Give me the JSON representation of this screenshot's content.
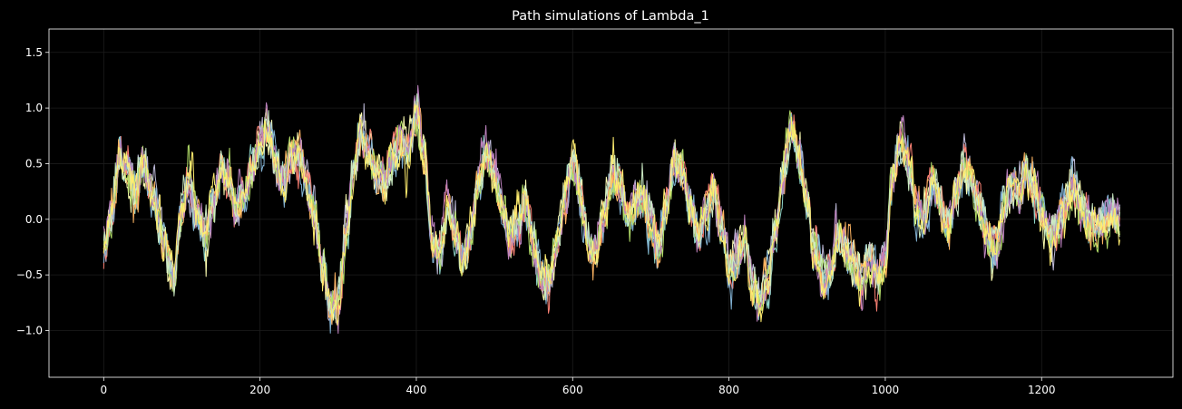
{
  "chart_data": {
    "type": "line",
    "title": "Path simulations of Lambda_1",
    "xlabel": "",
    "ylabel": "",
    "xlim": [
      -70,
      1368
    ],
    "ylim": [
      -1.42,
      1.71
    ],
    "xticks": [
      0,
      200,
      400,
      600,
      800,
      1000,
      1200
    ],
    "xtick_labels": [
      "0",
      "200",
      "400",
      "600",
      "800",
      "1000",
      "1200"
    ],
    "yticks": [
      -1.0,
      -0.5,
      0.0,
      0.5,
      1.0,
      1.5
    ],
    "ytick_labels": [
      "−1.0",
      "−0.5",
      "0.0",
      "0.5",
      "1.0",
      "1.5"
    ],
    "grid": true,
    "background": "#000000",
    "series_colors": [
      "#8dd3c7",
      "#feffb3",
      "#bfbbd9",
      "#fa8174",
      "#81b1d2",
      "#fdb462",
      "#b3de69",
      "#bc82bd",
      "#ccebc4",
      "#ffed6f"
    ],
    "x_range": [
      0,
      1300
    ],
    "mean_path": [
      {
        "x": 0,
        "y": -0.3
      },
      {
        "x": 10,
        "y": 0.05
      },
      {
        "x": 20,
        "y": 0.6
      },
      {
        "x": 30,
        "y": 0.45
      },
      {
        "x": 40,
        "y": 0.2
      },
      {
        "x": 50,
        "y": 0.55
      },
      {
        "x": 60,
        "y": 0.3
      },
      {
        "x": 70,
        "y": 0.0
      },
      {
        "x": 80,
        "y": -0.3
      },
      {
        "x": 90,
        "y": -0.55
      },
      {
        "x": 100,
        "y": 0.1
      },
      {
        "x": 110,
        "y": 0.35
      },
      {
        "x": 120,
        "y": 0.05
      },
      {
        "x": 130,
        "y": -0.15
      },
      {
        "x": 140,
        "y": 0.15
      },
      {
        "x": 150,
        "y": 0.4
      },
      {
        "x": 160,
        "y": 0.35
      },
      {
        "x": 170,
        "y": 0.15
      },
      {
        "x": 180,
        "y": 0.25
      },
      {
        "x": 190,
        "y": 0.4
      },
      {
        "x": 200,
        "y": 0.7
      },
      {
        "x": 210,
        "y": 0.8
      },
      {
        "x": 220,
        "y": 0.45
      },
      {
        "x": 230,
        "y": 0.35
      },
      {
        "x": 240,
        "y": 0.6
      },
      {
        "x": 250,
        "y": 0.55
      },
      {
        "x": 260,
        "y": 0.3
      },
      {
        "x": 270,
        "y": 0.05
      },
      {
        "x": 280,
        "y": -0.4
      },
      {
        "x": 290,
        "y": -0.8
      },
      {
        "x": 300,
        "y": -0.7
      },
      {
        "x": 310,
        "y": -0.1
      },
      {
        "x": 320,
        "y": 0.45
      },
      {
        "x": 330,
        "y": 0.75
      },
      {
        "x": 340,
        "y": 0.6
      },
      {
        "x": 350,
        "y": 0.4
      },
      {
        "x": 360,
        "y": 0.35
      },
      {
        "x": 370,
        "y": 0.55
      },
      {
        "x": 380,
        "y": 0.7
      },
      {
        "x": 390,
        "y": 0.6
      },
      {
        "x": 400,
        "y": 0.95
      },
      {
        "x": 410,
        "y": 0.6
      },
      {
        "x": 420,
        "y": -0.2
      },
      {
        "x": 430,
        "y": -0.3
      },
      {
        "x": 440,
        "y": 0.1
      },
      {
        "x": 450,
        "y": -0.1
      },
      {
        "x": 460,
        "y": -0.35
      },
      {
        "x": 470,
        "y": -0.1
      },
      {
        "x": 480,
        "y": 0.35
      },
      {
        "x": 490,
        "y": 0.6
      },
      {
        "x": 500,
        "y": 0.45
      },
      {
        "x": 510,
        "y": 0.1
      },
      {
        "x": 520,
        "y": -0.15
      },
      {
        "x": 530,
        "y": -0.05
      },
      {
        "x": 540,
        "y": 0.15
      },
      {
        "x": 550,
        "y": -0.2
      },
      {
        "x": 560,
        "y": -0.55
      },
      {
        "x": 570,
        "y": -0.55
      },
      {
        "x": 580,
        "y": -0.2
      },
      {
        "x": 590,
        "y": 0.15
      },
      {
        "x": 600,
        "y": 0.5
      },
      {
        "x": 610,
        "y": 0.2
      },
      {
        "x": 620,
        "y": -0.2
      },
      {
        "x": 630,
        "y": -0.3
      },
      {
        "x": 640,
        "y": 0.05
      },
      {
        "x": 650,
        "y": 0.4
      },
      {
        "x": 660,
        "y": 0.35
      },
      {
        "x": 670,
        "y": 0.05
      },
      {
        "x": 680,
        "y": 0.15
      },
      {
        "x": 690,
        "y": 0.2
      },
      {
        "x": 700,
        "y": -0.05
      },
      {
        "x": 710,
        "y": -0.25
      },
      {
        "x": 720,
        "y": 0.1
      },
      {
        "x": 730,
        "y": 0.5
      },
      {
        "x": 740,
        "y": 0.45
      },
      {
        "x": 750,
        "y": 0.15
      },
      {
        "x": 760,
        "y": -0.1
      },
      {
        "x": 770,
        "y": 0.0
      },
      {
        "x": 780,
        "y": 0.25
      },
      {
        "x": 790,
        "y": -0.05
      },
      {
        "x": 800,
        "y": -0.45
      },
      {
        "x": 810,
        "y": -0.35
      },
      {
        "x": 820,
        "y": -0.15
      },
      {
        "x": 830,
        "y": -0.6
      },
      {
        "x": 840,
        "y": -0.75
      },
      {
        "x": 850,
        "y": -0.55
      },
      {
        "x": 860,
        "y": -0.1
      },
      {
        "x": 870,
        "y": 0.45
      },
      {
        "x": 880,
        "y": 0.85
      },
      {
        "x": 890,
        "y": 0.55
      },
      {
        "x": 900,
        "y": 0.15
      },
      {
        "x": 910,
        "y": -0.3
      },
      {
        "x": 920,
        "y": -0.55
      },
      {
        "x": 930,
        "y": -0.45
      },
      {
        "x": 940,
        "y": -0.15
      },
      {
        "x": 950,
        "y": -0.25
      },
      {
        "x": 960,
        "y": -0.4
      },
      {
        "x": 970,
        "y": -0.55
      },
      {
        "x": 980,
        "y": -0.35
      },
      {
        "x": 990,
        "y": -0.5
      },
      {
        "x": 1000,
        "y": -0.35
      },
      {
        "x": 1010,
        "y": 0.4
      },
      {
        "x": 1020,
        "y": 0.7
      },
      {
        "x": 1030,
        "y": 0.55
      },
      {
        "x": 1040,
        "y": 0.1
      },
      {
        "x": 1050,
        "y": 0.05
      },
      {
        "x": 1060,
        "y": 0.35
      },
      {
        "x": 1070,
        "y": 0.15
      },
      {
        "x": 1080,
        "y": -0.1
      },
      {
        "x": 1090,
        "y": 0.2
      },
      {
        "x": 1100,
        "y": 0.5
      },
      {
        "x": 1110,
        "y": 0.35
      },
      {
        "x": 1120,
        "y": 0.1
      },
      {
        "x": 1130,
        "y": -0.15
      },
      {
        "x": 1140,
        "y": -0.3
      },
      {
        "x": 1150,
        "y": 0.05
      },
      {
        "x": 1160,
        "y": 0.3
      },
      {
        "x": 1170,
        "y": 0.2
      },
      {
        "x": 1180,
        "y": 0.4
      },
      {
        "x": 1190,
        "y": 0.3
      },
      {
        "x": 1200,
        "y": 0.05
      },
      {
        "x": 1210,
        "y": -0.15
      },
      {
        "x": 1220,
        "y": -0.1
      },
      {
        "x": 1230,
        "y": 0.1
      },
      {
        "x": 1240,
        "y": 0.3
      },
      {
        "x": 1250,
        "y": 0.15
      },
      {
        "x": 1260,
        "y": -0.05
      },
      {
        "x": 1270,
        "y": -0.1
      },
      {
        "x": 1280,
        "y": 0.0
      },
      {
        "x": 1290,
        "y": 0.05
      },
      {
        "x": 1300,
        "y": -0.05
      }
    ],
    "noise_amplitude": 0.32
  }
}
